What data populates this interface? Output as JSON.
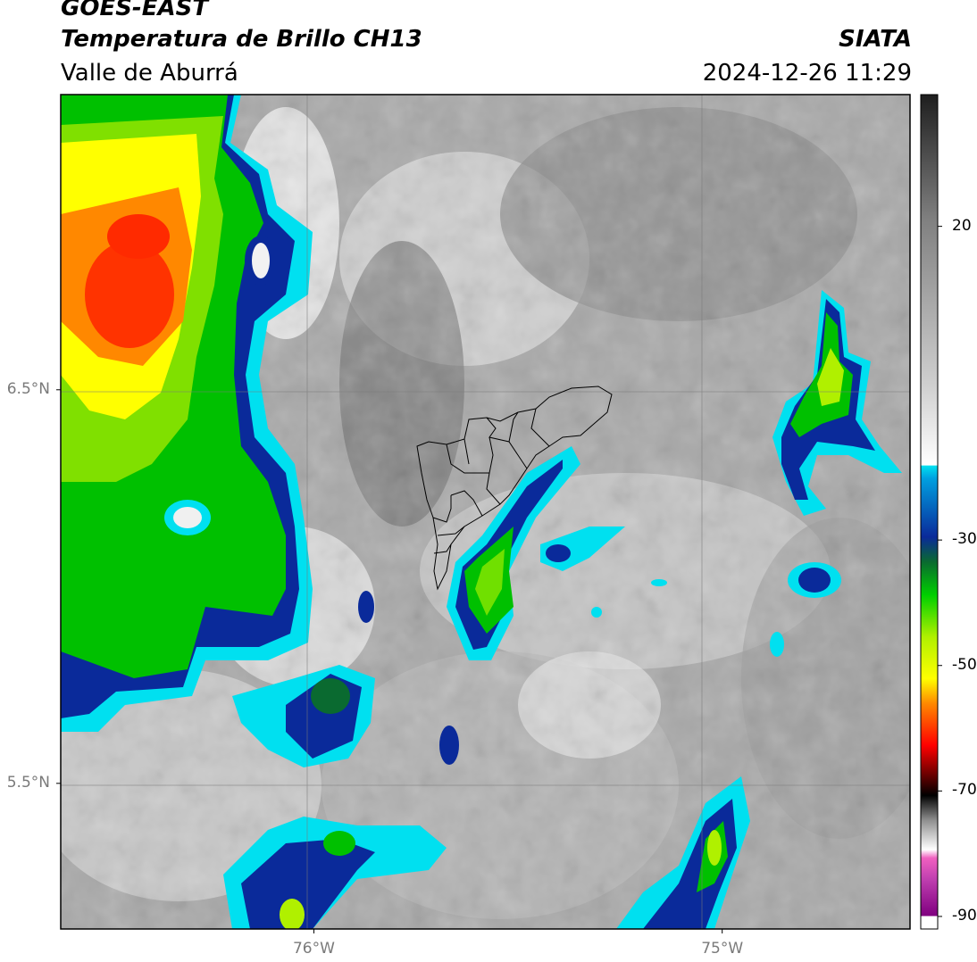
{
  "header": {
    "satellite": "GOES-EAST",
    "product": "Temperatura de Brillo CH13",
    "region": "Valle de Aburrá",
    "agency": "SIATA",
    "datetime": "2024-12-26 11:29"
  },
  "map": {
    "lon_range": [
      -76.62,
      -74.54
    ],
    "lat_range": [
      5.13,
      7.25
    ],
    "gridlines": true,
    "lon_ticks": [
      {
        "value": -76,
        "label": "76°W"
      },
      {
        "value": -75,
        "label": "75°W"
      }
    ],
    "lat_ticks": [
      {
        "value": 6.5,
        "label": "6.5°N"
      },
      {
        "value": 5.5,
        "label": "5.5°N"
      }
    ]
  },
  "colorbar": {
    "range": [
      -92,
      41
    ],
    "ticks": [
      {
        "value": 20,
        "label": "20"
      },
      {
        "value": -30,
        "label": "-30"
      },
      {
        "value": -50,
        "label": "-50"
      },
      {
        "value": -70,
        "label": "-70"
      },
      {
        "value": -90,
        "label": "-90"
      }
    ],
    "colors": {
      "white": "#ffffff",
      "gray_light": "#e0e0e0",
      "gray_dark": "#1e1e1e",
      "cyan": "#00e0f0",
      "blue": "#0a2a9a",
      "dark_green": "#0a6a30",
      "green": "#00d000",
      "lime": "#b0f000",
      "yellow": "#ffff00",
      "orange": "#ff8800",
      "red": "#ff0000",
      "black": "#000000",
      "magenta": "#e040c0",
      "purple": "#800080"
    }
  }
}
